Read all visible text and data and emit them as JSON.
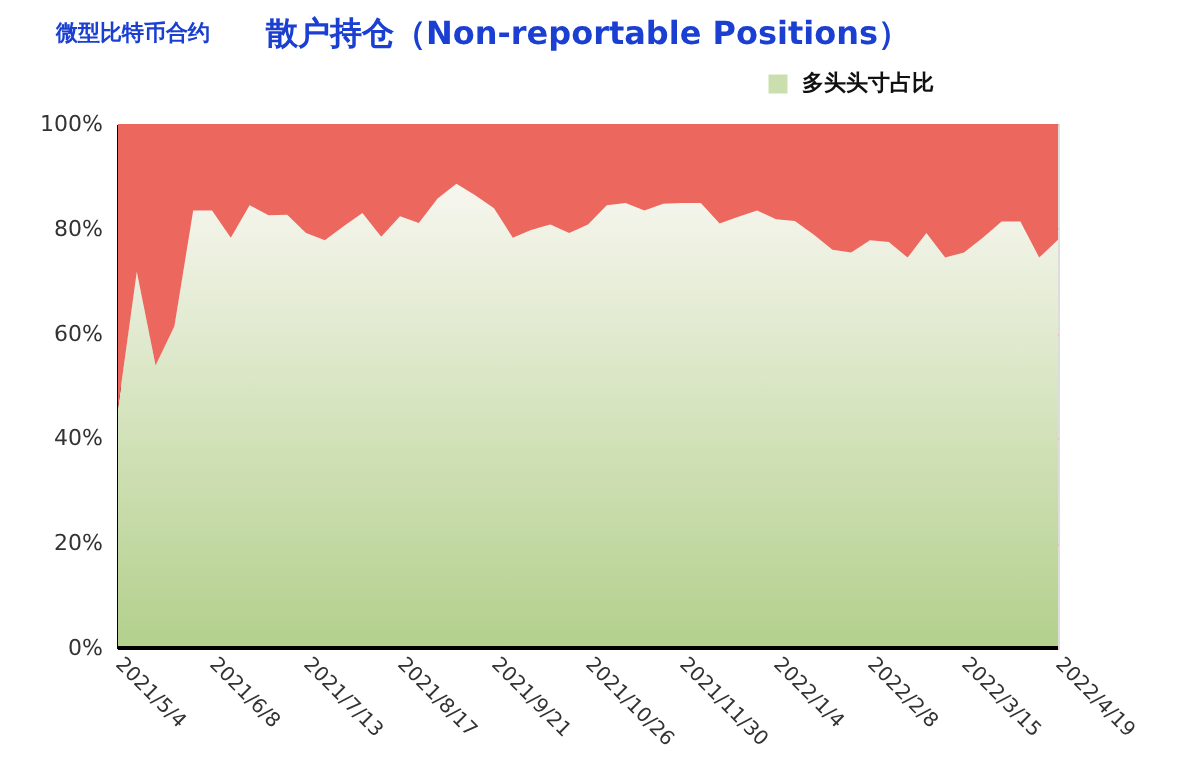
{
  "chart_data": {
    "type": "area",
    "title": "散户持仓（Non-reportable Positions）",
    "annotations": [
      "微型比特币合约"
    ],
    "categories": [
      "2021/5/4",
      null,
      null,
      null,
      null,
      "2021/6/8",
      null,
      null,
      null,
      null,
      "2021/7/13",
      null,
      null,
      null,
      null,
      "2021/8/17",
      null,
      null,
      null,
      null,
      "2021/9/21",
      null,
      null,
      null,
      null,
      "2021/10/26",
      null,
      null,
      null,
      null,
      "2021/11/30",
      null,
      null,
      null,
      null,
      "2022/1/4",
      null,
      null,
      null,
      null,
      "2022/2/8",
      null,
      null,
      null,
      null,
      "2022/3/15",
      null,
      null,
      null,
      null,
      "2022/4/19"
    ],
    "stacked": true,
    "series": [
      {
        "name": "多头头寸占比",
        "color": "#b3d08c",
        "values": [
          45.8,
          71.8,
          53.9,
          61.4,
          83.5,
          83.5,
          78.3,
          84.5,
          82.6,
          82.7,
          79.2,
          77.8,
          80.5,
          83.0,
          78.5,
          82.4,
          81.1,
          85.8,
          88.6,
          86.4,
          83.9,
          78.3,
          79.8,
          80.8,
          79.2,
          80.8,
          84.5,
          84.9,
          83.5,
          84.8,
          84.9,
          84.9,
          81.0,
          82.3,
          83.5,
          81.8,
          81.5,
          78.9,
          76.0,
          75.5,
          77.8,
          77.5,
          74.5,
          79.2,
          74.5,
          75.5,
          78.3,
          81.4,
          81.4,
          74.5,
          77.9
        ]
      },
      {
        "color": "#ec675e",
        "values": [
          54.2,
          28.2,
          46.1,
          38.6,
          16.5,
          16.5,
          21.7,
          15.5,
          17.4,
          17.3,
          20.8,
          22.2,
          19.5,
          17.0,
          21.5,
          17.6,
          18.9,
          14.2,
          11.4,
          13.6,
          16.1,
          21.7,
          20.2,
          19.2,
          20.8,
          19.2,
          15.5,
          15.1,
          16.5,
          15.2,
          15.1,
          15.1,
          19.0,
          17.7,
          16.5,
          18.2,
          18.5,
          21.1,
          24.0,
          24.5,
          22.2,
          22.5,
          25.5,
          20.8,
          25.5,
          24.5,
          21.7,
          18.6,
          18.6,
          25.5,
          22.1
        ]
      }
    ],
    "ylim": [
      0,
      100
    ],
    "yticks": [
      {
        "value": 0,
        "label": "0%"
      },
      {
        "value": 20,
        "label": "20%"
      },
      {
        "value": 40,
        "label": "40%"
      },
      {
        "value": 60,
        "label": "60%"
      },
      {
        "value": 80,
        "label": "80%"
      },
      {
        "value": 100,
        "label": "100%"
      }
    ],
    "grid": "y",
    "legend": "top right"
  }
}
